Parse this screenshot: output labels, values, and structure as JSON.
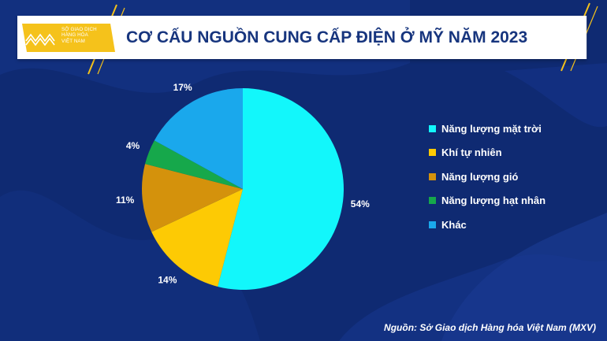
{
  "header": {
    "title": "CƠ CẤU NGUỒN CUNG CẤP ĐIỆN Ở MỸ NĂM 2023",
    "logo_text": "SỞ GIAO DỊCH\nHÀNG HÓA\nVIỆT NAM"
  },
  "source": "Nguồn: Sở Giao dịch Hàng hóa Việt Nam (MXV)",
  "colors": {
    "background": "#0f2a72",
    "accent_yellow": "#f5c21b",
    "title_blue": "#17357e"
  },
  "chart_data": {
    "type": "pie",
    "title": "CƠ CẤU NGUỒN CUNG CẤP ĐIỆN Ở MỸ NĂM 2023",
    "legend_position": "right",
    "slices": [
      {
        "name": "Năng lượng mặt trời",
        "value": 54,
        "label": "54%",
        "color": "#12f7fb"
      },
      {
        "name": "Khí tự nhiên",
        "value": 14,
        "label": "14%",
        "color": "#fdca04"
      },
      {
        "name": "Năng lượng gió",
        "value": 11,
        "label": "11%",
        "color": "#d4920c"
      },
      {
        "name": "Năng lượng hạt nhân",
        "value": 4,
        "label": "4%",
        "color": "#16a84b"
      },
      {
        "name": "Khác",
        "value": 17,
        "label": "17%",
        "color": "#1aa8ec"
      }
    ]
  }
}
